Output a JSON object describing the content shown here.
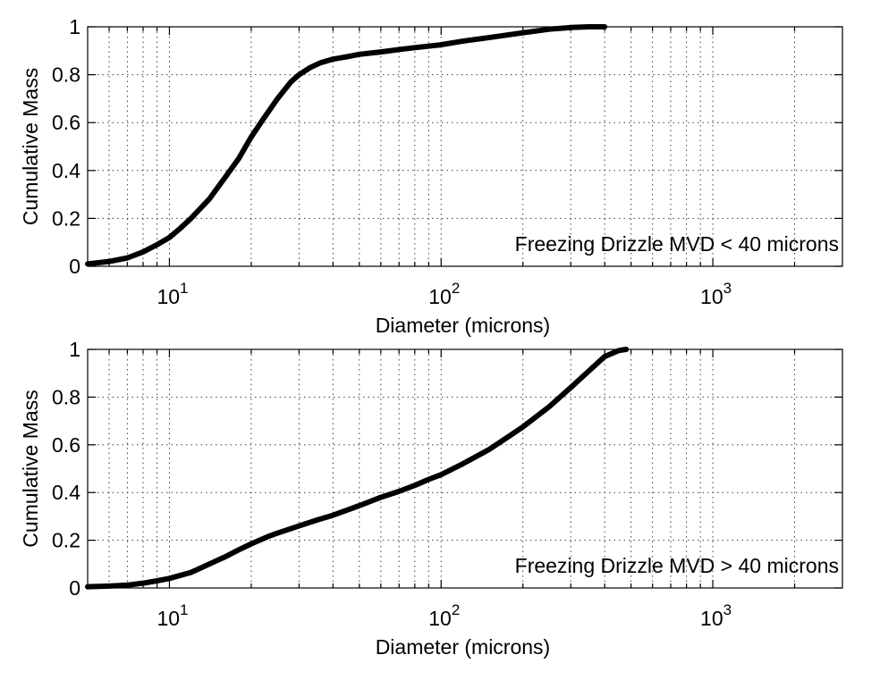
{
  "chart_data": [
    {
      "type": "line",
      "title": "",
      "xlabel": "Diameter (microns)",
      "ylabel": "Cumulative Mass",
      "xscale": "log",
      "xlim": [
        5,
        3000
      ],
      "ylim": [
        0,
        1
      ],
      "grid": true,
      "annotation": "Freezing Drizzle MVD < 40 microns",
      "xticks": [
        {
          "base": "10",
          "exp": "1"
        },
        {
          "base": "10",
          "exp": "2"
        },
        {
          "base": "10",
          "exp": "3"
        }
      ],
      "yticks": [
        "0",
        "0.2",
        "0.4",
        "0.6",
        "0.8",
        "1"
      ],
      "series": [
        {
          "color": "#000000",
          "x": [
            5,
            6,
            7,
            8,
            9,
            10,
            11,
            12,
            14,
            16,
            18,
            20,
            22,
            25,
            28,
            30,
            33,
            36,
            40,
            45,
            50,
            60,
            70,
            80,
            100,
            120,
            150,
            200,
            250,
            300,
            350,
            400
          ],
          "y": [
            0.01,
            0.02,
            0.035,
            0.06,
            0.09,
            0.12,
            0.16,
            0.2,
            0.28,
            0.37,
            0.45,
            0.54,
            0.61,
            0.7,
            0.77,
            0.8,
            0.83,
            0.85,
            0.865,
            0.875,
            0.885,
            0.895,
            0.905,
            0.913,
            0.925,
            0.94,
            0.955,
            0.975,
            0.99,
            0.997,
            1.0,
            1.0
          ]
        }
      ]
    },
    {
      "type": "line",
      "title": "",
      "xlabel": "Diameter (microns)",
      "ylabel": "Cumulative Mass",
      "xscale": "log",
      "xlim": [
        5,
        3000
      ],
      "ylim": [
        0,
        1
      ],
      "grid": true,
      "annotation": "Freezing Drizzle MVD > 40 microns",
      "xticks": [
        {
          "base": "10",
          "exp": "1"
        },
        {
          "base": "10",
          "exp": "2"
        },
        {
          "base": "10",
          "exp": "3"
        }
      ],
      "yticks": [
        "0",
        "0.2",
        "0.4",
        "0.6",
        "0.8",
        "1"
      ],
      "series": [
        {
          "color": "#000000",
          "x": [
            5,
            6,
            7,
            8,
            9,
            10,
            12,
            14,
            16,
            18,
            20,
            23,
            25,
            30,
            35,
            40,
            50,
            60,
            70,
            80,
            90,
            100,
            120,
            150,
            180,
            200,
            250,
            300,
            350,
            400,
            450,
            480
          ],
          "y": [
            0.005,
            0.008,
            0.012,
            0.02,
            0.03,
            0.04,
            0.065,
            0.1,
            0.13,
            0.16,
            0.185,
            0.215,
            0.23,
            0.26,
            0.285,
            0.305,
            0.345,
            0.38,
            0.405,
            0.43,
            0.455,
            0.475,
            0.52,
            0.58,
            0.64,
            0.675,
            0.76,
            0.84,
            0.91,
            0.97,
            0.995,
            1.0
          ]
        }
      ]
    }
  ]
}
